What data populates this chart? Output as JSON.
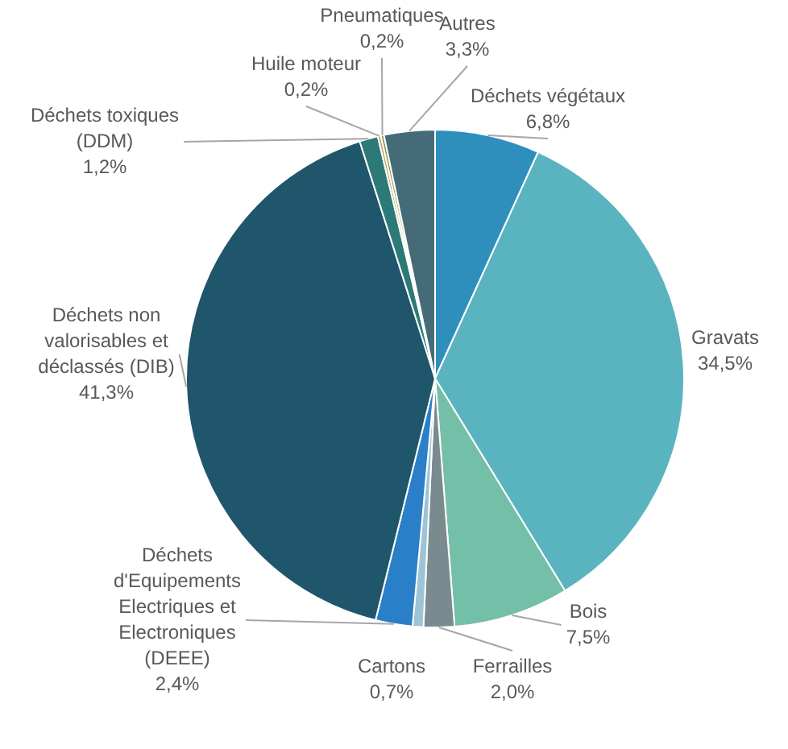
{
  "chart_data": {
    "type": "pie",
    "categories": [
      "Déchets végétaux",
      "Gravats",
      "Bois",
      "Ferrailles",
      "Cartons",
      "Déchets d'Equipements Electriques et Electroniques (DEEE)",
      "Déchets non valorisables et déclassés (DIB)",
      "Déchets toxiques (DDM)",
      "Huile moteur",
      "Pneumatiques",
      "Autres"
    ],
    "values": [
      6.8,
      34.5,
      7.5,
      2.0,
      0.7,
      2.4,
      41.3,
      1.2,
      0.2,
      0.2,
      3.3
    ],
    "value_labels": [
      "6,8%",
      "34,5%",
      "7,5%",
      "2,0%",
      "0,7%",
      "2,4%",
      "41,3%",
      "1,2%",
      "0,2%",
      "0,2%",
      "3,3%"
    ],
    "colors": [
      "#2e8fbd",
      "#5ab4c0",
      "#74bfa8",
      "#7a8b8f",
      "#9dc3d6",
      "#2a7fc8",
      "#1f566b",
      "#2b7a78",
      "#c8a060",
      "#8a9a50",
      "#466b78"
    ],
    "legend": false
  }
}
